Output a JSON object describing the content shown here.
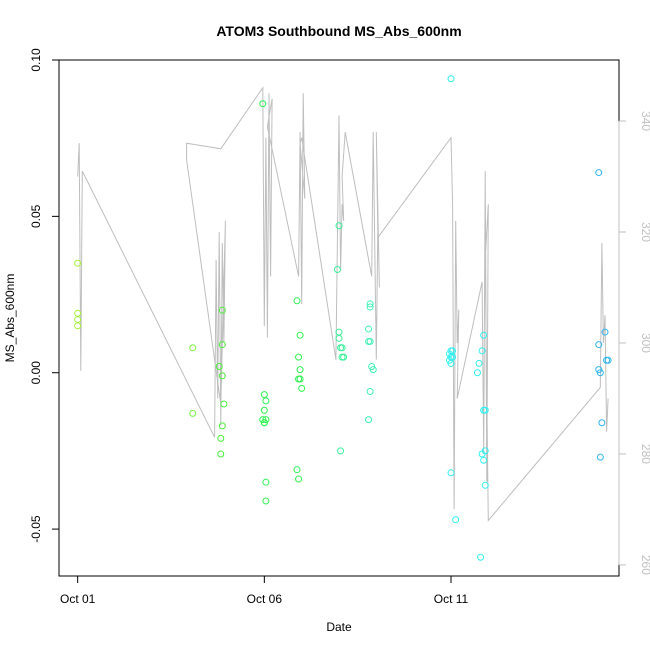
{
  "chart_data": {
    "type": "scatter",
    "title": "ATOM3 Southbound MS_Abs_600nm",
    "xlabel": "Date",
    "ylabel": "MS_Abs_600nm",
    "y2label": "",
    "x_ticks": [
      "Oct 01",
      "Oct 06",
      "Oct 11"
    ],
    "y_ticks": [
      "-0.05",
      "0.00",
      "0.05",
      "0.10"
    ],
    "y2_ticks": [
      "260",
      "280",
      "300",
      "320",
      "340"
    ],
    "xlim": [
      "2016-09-30T12:00",
      "2016-10-15T12:00"
    ],
    "ylim": [
      -0.065,
      0.1
    ],
    "y2lim": [
      258,
      351
    ],
    "grid": false,
    "legend": "none",
    "colors": {
      "line": "#bebebe",
      "axis": "#000000",
      "right_axis": "#c0c0c0"
    },
    "series": [
      {
        "role": "points",
        "points": [
          {
            "x": "2016-10-01T00:00",
            "y": 0.035,
            "color": "#a6f03a"
          },
          {
            "x": "2016-10-01T00:00",
            "y": 0.019,
            "color": "#a6f03a"
          },
          {
            "x": "2016-10-01T00:00",
            "y": 0.017,
            "color": "#a6f03a"
          },
          {
            "x": "2016-10-01T00:00",
            "y": 0.015,
            "color": "#a6f03a"
          },
          {
            "x": "2016-10-04T02:00",
            "y": 0.008,
            "color": "#79f040"
          },
          {
            "x": "2016-10-04T02:00",
            "y": -0.013,
            "color": "#79f040"
          },
          {
            "x": "2016-10-04T19:00",
            "y": 0.002,
            "color": "#4cf03c"
          },
          {
            "x": "2016-10-04T20:00",
            "y": -0.026,
            "color": "#4cf03c"
          },
          {
            "x": "2016-10-04T21:00",
            "y": 0.02,
            "color": "#4cf03c"
          },
          {
            "x": "2016-10-04T21:00",
            "y": 0.009,
            "color": "#4cf03c"
          },
          {
            "x": "2016-10-04T21:00",
            "y": -0.001,
            "color": "#4cf03c"
          },
          {
            "x": "2016-10-04T22:00",
            "y": -0.01,
            "color": "#4cf03c"
          },
          {
            "x": "2016-10-04T21:00",
            "y": -0.017,
            "color": "#4cf03c"
          },
          {
            "x": "2016-10-04T20:00",
            "y": -0.021,
            "color": "#4cf03c"
          },
          {
            "x": "2016-10-05T23:00",
            "y": 0.086,
            "color": "#30f050"
          },
          {
            "x": "2016-10-06T00:00",
            "y": -0.007,
            "color": "#30f050"
          },
          {
            "x": "2016-10-06T01:00",
            "y": -0.009,
            "color": "#30f050"
          },
          {
            "x": "2016-10-06T00:00",
            "y": -0.012,
            "color": "#30f050"
          },
          {
            "x": "2016-10-05T23:00",
            "y": -0.015,
            "color": "#30f050"
          },
          {
            "x": "2016-10-06T00:00",
            "y": -0.016,
            "color": "#30f050"
          },
          {
            "x": "2016-10-06T00:00",
            "y": -0.016,
            "color": "#30f050"
          },
          {
            "x": "2016-10-06T01:00",
            "y": -0.015,
            "color": "#30f050"
          },
          {
            "x": "2016-10-06T01:00",
            "y": -0.035,
            "color": "#30f050"
          },
          {
            "x": "2016-10-06T01:00",
            "y": -0.041,
            "color": "#30f050"
          },
          {
            "x": "2016-10-06T21:00",
            "y": 0.023,
            "color": "#30f050"
          },
          {
            "x": "2016-10-06T22:00",
            "y": 0.005,
            "color": "#30f050"
          },
          {
            "x": "2016-10-06T23:00",
            "y": 0.001,
            "color": "#30f050"
          },
          {
            "x": "2016-10-06T22:00",
            "y": -0.002,
            "color": "#30f050"
          },
          {
            "x": "2016-10-06T23:00",
            "y": -0.002,
            "color": "#30f050"
          },
          {
            "x": "2016-10-07T00:00",
            "y": -0.005,
            "color": "#30f050"
          },
          {
            "x": "2016-10-06T21:00",
            "y": -0.031,
            "color": "#30f050"
          },
          {
            "x": "2016-10-06T22:00",
            "y": -0.034,
            "color": "#30f050"
          },
          {
            "x": "2016-10-06T23:00",
            "y": 0.012,
            "color": "#30f050"
          },
          {
            "x": "2016-10-08T00:00",
            "y": 0.047,
            "color": "#38f09a"
          },
          {
            "x": "2016-10-07T23:00",
            "y": 0.033,
            "color": "#38f09a"
          },
          {
            "x": "2016-10-08T00:00",
            "y": 0.013,
            "color": "#38f09a"
          },
          {
            "x": "2016-10-08T00:00",
            "y": 0.011,
            "color": "#38f09a"
          },
          {
            "x": "2016-10-08T01:00",
            "y": 0.008,
            "color": "#38f09a"
          },
          {
            "x": "2016-10-08T02:00",
            "y": 0.008,
            "color": "#38f09a"
          },
          {
            "x": "2016-10-08T02:00",
            "y": 0.005,
            "color": "#38f09a"
          },
          {
            "x": "2016-10-08T03:00",
            "y": 0.005,
            "color": "#38f09a"
          },
          {
            "x": "2016-10-08T01:00",
            "y": -0.025,
            "color": "#38f09a"
          },
          {
            "x": "2016-10-08T20:00",
            "y": 0.022,
            "color": "#40f0b5"
          },
          {
            "x": "2016-10-08T20:00",
            "y": 0.021,
            "color": "#40f0b5"
          },
          {
            "x": "2016-10-08T19:00",
            "y": 0.014,
            "color": "#40f0b5"
          },
          {
            "x": "2016-10-08T19:00",
            "y": 0.01,
            "color": "#40f0b5"
          },
          {
            "x": "2016-10-08T20:00",
            "y": 0.01,
            "color": "#40f0b5"
          },
          {
            "x": "2016-10-08T21:00",
            "y": 0.002,
            "color": "#40f0b5"
          },
          {
            "x": "2016-10-08T22:00",
            "y": 0.001,
            "color": "#40f0b5"
          },
          {
            "x": "2016-10-08T20:00",
            "y": -0.006,
            "color": "#40f0b5"
          },
          {
            "x": "2016-10-08T19:00",
            "y": -0.015,
            "color": "#40f0b5"
          },
          {
            "x": "2016-10-11T00:00",
            "y": 0.094,
            "color": "#30f0f0"
          },
          {
            "x": "2016-10-11T00:00",
            "y": 0.007,
            "color": "#30f0f0"
          },
          {
            "x": "2016-10-11T01:00",
            "y": 0.007,
            "color": "#30f0f0"
          },
          {
            "x": "2016-10-10T23:00",
            "y": 0.006,
            "color": "#30f0f0"
          },
          {
            "x": "2016-10-11T00:00",
            "y": 0.005,
            "color": "#30f0f0"
          },
          {
            "x": "2016-10-11T01:00",
            "y": 0.005,
            "color": "#30f0f0"
          },
          {
            "x": "2016-10-10T23:00",
            "y": 0.004,
            "color": "#30f0f0"
          },
          {
            "x": "2016-10-11T00:00",
            "y": 0.003,
            "color": "#30f0f0"
          },
          {
            "x": "2016-10-11T00:00",
            "y": -0.032,
            "color": "#30f0f0"
          },
          {
            "x": "2016-10-11T03:00",
            "y": -0.047,
            "color": "#30f0f0"
          },
          {
            "x": "2016-10-11T18:00",
            "y": 0.003,
            "color": "#30f0f0"
          },
          {
            "x": "2016-10-11T17:00",
            "y": 0.0,
            "color": "#30f0f0"
          },
          {
            "x": "2016-10-11T21:00",
            "y": 0.012,
            "color": "#30f0f0"
          },
          {
            "x": "2016-10-11T20:00",
            "y": 0.007,
            "color": "#30f0f0"
          },
          {
            "x": "2016-10-11T21:00",
            "y": -0.012,
            "color": "#30f0f0"
          },
          {
            "x": "2016-10-11T22:00",
            "y": -0.012,
            "color": "#30f0f0"
          },
          {
            "x": "2016-10-11T22:00",
            "y": -0.025,
            "color": "#30f0f0"
          },
          {
            "x": "2016-10-11T20:00",
            "y": -0.026,
            "color": "#30f0f0"
          },
          {
            "x": "2016-10-11T21:00",
            "y": -0.028,
            "color": "#30f0f0"
          },
          {
            "x": "2016-10-11T22:00",
            "y": -0.036,
            "color": "#30f0f0"
          },
          {
            "x": "2016-10-11T19:00",
            "y": -0.059,
            "color": "#30f0f0"
          },
          {
            "x": "2016-10-14T23:00",
            "y": 0.064,
            "color": "#30b4f0"
          },
          {
            "x": "2016-10-15T03:00",
            "y": 0.013,
            "color": "#30b4f0"
          },
          {
            "x": "2016-10-14T23:00",
            "y": 0.009,
            "color": "#30b4f0"
          },
          {
            "x": "2016-10-15T04:00",
            "y": 0.004,
            "color": "#30b4f0"
          },
          {
            "x": "2016-10-15T05:00",
            "y": 0.004,
            "color": "#30b4f0"
          },
          {
            "x": "2016-10-14T23:00",
            "y": 0.001,
            "color": "#30b4f0"
          },
          {
            "x": "2016-10-15T00:00",
            "y": 0.0,
            "color": "#30b4f0"
          },
          {
            "x": "2016-10-15T01:00",
            "y": -0.016,
            "color": "#30b4f0"
          },
          {
            "x": "2016-10-15T00:00",
            "y": -0.027,
            "color": "#30b4f0"
          }
        ]
      },
      {
        "role": "line",
        "axis": "right",
        "x": [
          "2016-10-01T00:00",
          "2016-10-01T01:00",
          "2016-10-01T02:00",
          "2016-10-01T03:00",
          "2016-10-04T16:00",
          "2016-10-04T17:00",
          "2016-10-04T18:00",
          "2016-10-04T19:00",
          "2016-10-04T20:00",
          "2016-10-04T21:00",
          "2016-10-04T22:00",
          "2016-10-04T23:00",
          "2016-10-04T20:00",
          "2016-10-03T22:00",
          "2016-10-03T22:00",
          "2016-10-04T20:00",
          "2016-10-05T23:00",
          "2016-10-06T00:00",
          "2016-10-06T01:00",
          "2016-10-06T02:00",
          "2016-10-06T03:00",
          "2016-10-06T04:00",
          "2016-10-06T05:00",
          "2016-10-06T02:00",
          "2016-10-06T22:00",
          "2016-10-06T23:00",
          "2016-10-07T00:00",
          "2016-10-07T01:00",
          "2016-10-07T02:00",
          "2016-10-06T23:00",
          "2016-10-07T00:00",
          "2016-10-07T22:00",
          "2016-10-08T00:00",
          "2016-10-08T01:00",
          "2016-10-08T02:00",
          "2016-10-08T03:00",
          "2016-10-08T02:00",
          "2016-10-08T04:00",
          "2016-10-08T21:00",
          "2016-10-08T22:00",
          "2016-10-09T00:00",
          "2016-10-09T01:00",
          "2016-10-09T02:00",
          "2016-10-09T00:00",
          "2016-10-09T01:00",
          "2016-10-11T00:00",
          "2016-10-11T01:00",
          "2016-10-11T02:00",
          "2016-10-11T03:00",
          "2016-10-11T04:00",
          "2016-10-11T05:00",
          "2016-10-11T04:00",
          "2016-10-11T20:00",
          "2016-10-11T21:00",
          "2016-10-11T22:00",
          "2016-10-11T23:00",
          "2016-10-12T00:00",
          "2016-10-11T22:00",
          "2016-10-12T00:00",
          "2016-10-15T00:00",
          "2016-10-15T01:00",
          "2016-10-15T02:00",
          "2016-10-15T03:00",
          "2016-10-15T04:00",
          "2016-10-15T05:00"
        ],
        "y": [
          330,
          336,
          295,
          331,
          283,
          315,
          290,
          320,
          285,
          318,
          300,
          322,
          289,
          333,
          336,
          335,
          346,
          303,
          337,
          301,
          345,
          312,
          344,
          339,
          312,
          338,
          307,
          345,
          326,
          336,
          337,
          297,
          341,
          313,
          325,
          322,
          330,
          338,
          312,
          338,
          297,
          322,
          310,
          338,
          319,
          337,
          325,
          270,
          322,
          300,
          306,
          290,
          311,
          280,
          331,
          275,
          325,
          315,
          268,
          292,
          318,
          300,
          305,
          284,
          290
        ]
      }
    ]
  }
}
